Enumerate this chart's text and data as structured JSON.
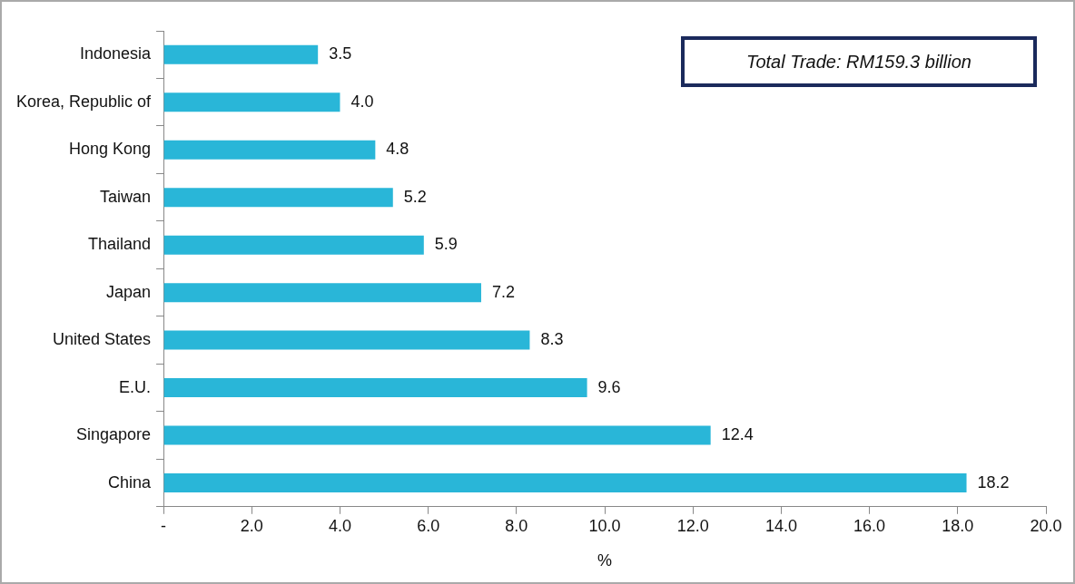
{
  "chart_data": {
    "type": "bar",
    "orientation": "horizontal",
    "xlabel": "%",
    "categories": [
      "Indonesia",
      "Korea, Republic of",
      "Hong Kong",
      "Taiwan",
      "Thailand",
      "Japan",
      "United States",
      "E.U.",
      "Singapore",
      "China"
    ],
    "values": [
      3.5,
      4.0,
      4.8,
      5.2,
      5.9,
      7.2,
      8.3,
      9.6,
      12.4,
      18.2
    ],
    "value_labels": [
      "3.5",
      "4.0",
      "4.8",
      "5.2",
      "5.9",
      "7.2",
      "8.3",
      "9.6",
      "12.4",
      "18.2"
    ],
    "color": "#29b6d8",
    "xlim": [
      0,
      20
    ],
    "xticks": [
      {
        "value": 0,
        "label": "-"
      },
      {
        "value": 2,
        "label": "2.0"
      },
      {
        "value": 4,
        "label": "4.0"
      },
      {
        "value": 6,
        "label": "6.0"
      },
      {
        "value": 8,
        "label": "8.0"
      },
      {
        "value": 10,
        "label": "10.0"
      },
      {
        "value": 12,
        "label": "12.0"
      },
      {
        "value": 14,
        "label": "14.0"
      },
      {
        "value": 16,
        "label": "16.0"
      },
      {
        "value": 18,
        "label": "18.0"
      },
      {
        "value": 20,
        "label": "20.0"
      }
    ],
    "grid": false,
    "legend": false,
    "annotations": [
      "Total Trade: RM159.3 billion"
    ]
  }
}
